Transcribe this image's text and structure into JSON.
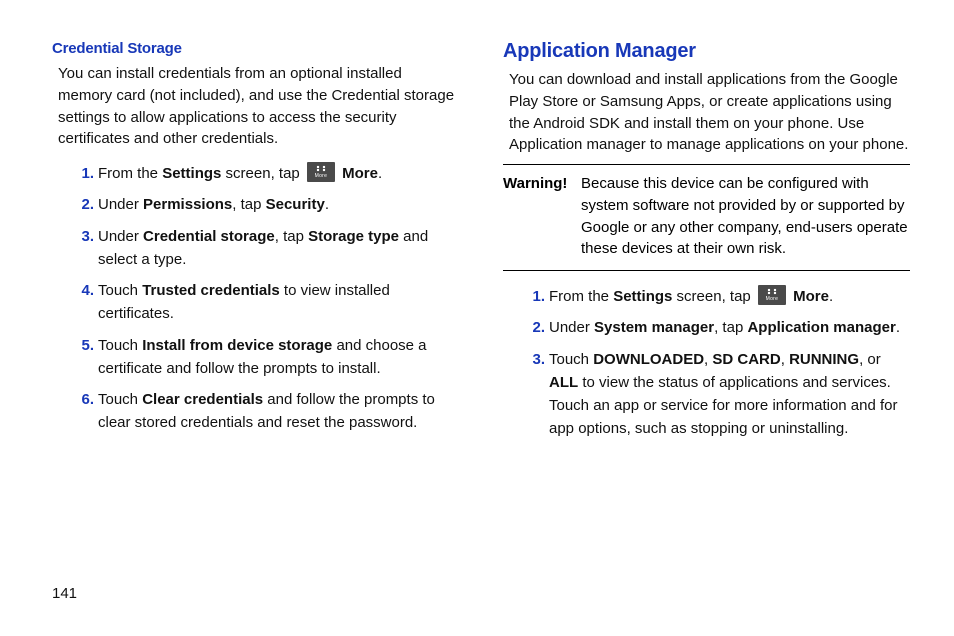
{
  "pageNumber": "141",
  "left": {
    "subheading": "Credential Storage",
    "intro": "You can install credentials from an optional installed memory card (not included), and use the Credential storage settings to allow applications to access the security certificates and other credentials.",
    "steps": {
      "s1a": "From the ",
      "s1b": "Settings",
      "s1c": " screen, tap ",
      "s1d": "More",
      "s1e": ".",
      "s2a": "Under ",
      "s2b": "Permissions",
      "s2c": ", tap ",
      "s2d": "Security",
      "s2e": ".",
      "s3a": "Under ",
      "s3b": "Credential storage",
      "s3c": ", tap ",
      "s3d": "Storage type",
      "s3e": " and select a type.",
      "s4a": "Touch ",
      "s4b": "Trusted credentials",
      "s4c": " to view installed certificates.",
      "s5a": "Touch ",
      "s5b": "Install from device storage",
      "s5c": " and choose a certificate and follow the prompts to install.",
      "s6a": "Touch ",
      "s6b": "Clear credentials",
      "s6c": " and follow the prompts to clear stored credentials and reset the password."
    }
  },
  "right": {
    "heading": "Application Manager",
    "intro": "You can download and install applications from the Google Play Store or Samsung Apps, or create applications using the Android SDK and install them on your phone. Use Application manager to manage applications on your phone.",
    "warningLabel": "Warning!",
    "warningText": "Because this device can be configured with system software not provided by or supported by Google or any other company, end-users operate these devices at their own risk.",
    "steps": {
      "s1a": "From the ",
      "s1b": "Settings",
      "s1c": " screen, tap ",
      "s1d": "More",
      "s1e": ".",
      "s2a": "Under ",
      "s2b": "System manager",
      "s2c": ", tap ",
      "s2d": "Application manager",
      "s2e": ".",
      "s3a": "Touch ",
      "s3b": "DOWNLOADED",
      "s3c": ", ",
      "s3d": "SD CARD",
      "s3e": ", ",
      "s3f": "RUNNING",
      "s3g": ", or ",
      "s3h": "ALL",
      "s3i": " to view the status of applications and services. Touch an app or service for more information and for app options, such as stopping or uninstalling."
    }
  },
  "colors": {
    "headingBlue": "#1838b8",
    "text": "#111111",
    "iconBg": "#4a4a4a",
    "background": "#ffffff"
  },
  "typography": {
    "bodyFontSize": 15,
    "subHeadingFontSize": 15,
    "mainHeadingFontSize": 20,
    "lineHeight": 1.45
  }
}
